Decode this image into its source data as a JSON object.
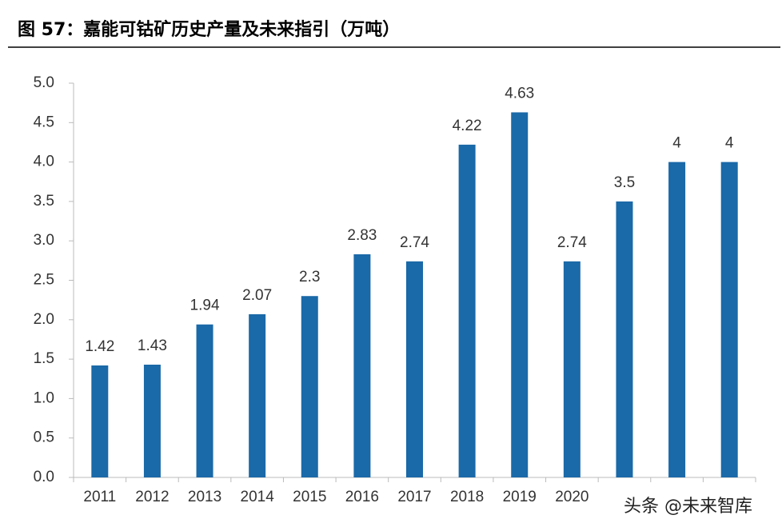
{
  "chart_data": {
    "type": "bar",
    "title": "图 57：嘉能可钴矿历史产量及未来指引（万吨）",
    "categories": [
      "2011",
      "2012",
      "2013",
      "2014",
      "2015",
      "2016",
      "2017",
      "2018",
      "2019",
      "2020",
      null,
      null,
      null
    ],
    "values": [
      1.42,
      1.43,
      1.94,
      2.07,
      2.3,
      2.83,
      2.74,
      4.22,
      4.63,
      2.74,
      3.5,
      4,
      4
    ],
    "color": "#1a69a8",
    "ylim": [
      0,
      5
    ],
    "yticks": [
      {
        "value": 0,
        "label": "0.0"
      },
      {
        "value": 0.5,
        "label": "0.5"
      },
      {
        "value": 1,
        "label": "1.0"
      },
      {
        "value": 1.5,
        "label": "1.5"
      },
      {
        "value": 2,
        "label": "2.0"
      },
      {
        "value": 2.5,
        "label": "2.5"
      },
      {
        "value": 3,
        "label": "3.0"
      },
      {
        "value": 3.5,
        "label": "3.5"
      },
      {
        "value": 4,
        "label": "4.0"
      },
      {
        "value": 4.5,
        "label": "4.5"
      },
      {
        "value": 5,
        "label": "5.0"
      }
    ],
    "watermark": "头条 @未来智库"
  }
}
